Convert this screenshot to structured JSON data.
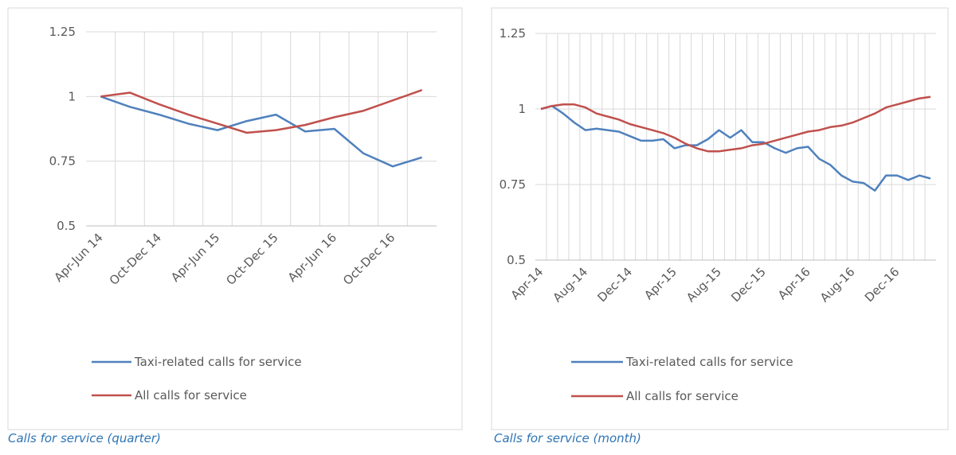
{
  "chart_data": [
    {
      "type": "line",
      "caption": "Calls for service (quarter)",
      "categories": [
        "Apr-Jun 14",
        null,
        "Oct-Dec 14",
        null,
        "Apr-Jun 15",
        null,
        "Oct-Dec 15",
        null,
        "Apr-Jun 16",
        null,
        "Oct-Dec 16",
        null
      ],
      "series": [
        {
          "name": "Taxi-related calls for service",
          "color": "#4f81bd",
          "values": [
            1.0,
            0.96,
            0.93,
            0.895,
            0.87,
            0.905,
            0.93,
            0.865,
            0.875,
            0.78,
            0.73,
            0.765
          ]
        },
        {
          "name": "All calls for service",
          "color": "#c0504d",
          "values": [
            1.0,
            1.015,
            0.97,
            0.93,
            0.895,
            0.86,
            0.87,
            0.89,
            0.92,
            0.945,
            0.985,
            1.025
          ]
        }
      ],
      "ylim": [
        0.5,
        1.25
      ],
      "yticks": [
        0.5,
        0.75,
        1,
        1.25
      ],
      "grid": true
    },
    {
      "type": "line",
      "caption": "Calls for service (month)",
      "categories": [
        "Apr-14",
        null,
        null,
        null,
        "Aug-14",
        null,
        null,
        null,
        "Dec-14",
        null,
        null,
        null,
        "Apr-15",
        null,
        null,
        null,
        "Aug-15",
        null,
        null,
        null,
        "Dec-15",
        null,
        null,
        null,
        "Apr-16",
        null,
        null,
        null,
        "Aug-16",
        null,
        null,
        null,
        "Dec-16",
        null,
        null,
        null
      ],
      "series": [
        {
          "name": "Taxi-related calls for service",
          "color": "#4f81bd",
          "values": [
            1.0,
            1.01,
            0.985,
            0.955,
            0.93,
            0.935,
            0.93,
            0.925,
            0.91,
            0.895,
            0.895,
            0.9,
            0.87,
            0.88,
            0.88,
            0.9,
            0.93,
            0.905,
            0.93,
            0.89,
            0.89,
            0.87,
            0.855,
            0.87,
            0.875,
            0.835,
            0.815,
            0.78,
            0.76,
            0.755,
            0.73,
            0.78,
            0.78,
            0.765,
            0.78,
            0.77
          ]
        },
        {
          "name": "All calls for service",
          "color": "#c0504d",
          "values": [
            1.0,
            1.01,
            1.015,
            1.015,
            1.005,
            0.985,
            0.975,
            0.965,
            0.95,
            0.94,
            0.93,
            0.92,
            0.905,
            0.885,
            0.87,
            0.86,
            0.86,
            0.865,
            0.87,
            0.88,
            0.885,
            0.895,
            0.905,
            0.915,
            0.925,
            0.93,
            0.94,
            0.945,
            0.955,
            0.97,
            0.985,
            1.005,
            1.015,
            1.025,
            1.035,
            1.04
          ]
        }
      ],
      "ylim": [
        0.5,
        1.25
      ],
      "yticks": [
        0.5,
        0.75,
        1,
        1.25
      ],
      "grid": true
    }
  ]
}
